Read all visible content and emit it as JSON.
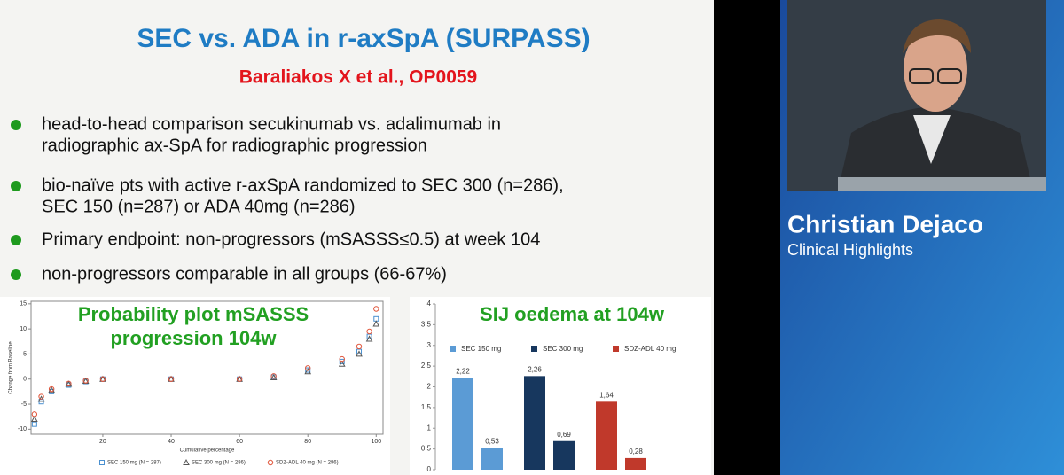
{
  "slide": {
    "title": "SEC vs. ADA in r-axSpA (SURPASS)",
    "subtitle": "Baraliakos X et al., OP0059",
    "bullets": [
      [
        "head-to-head comparison secukinumab vs. adalimumab in",
        "radiographic ax-SpA for radiographic progression"
      ],
      [
        "bio-naïve pts with active r-axSpA randomized to SEC 300 (n=286),",
        "SEC 150 (n=287) or ADA 40mg (n=286)"
      ],
      [
        "Primary endpoint: non-progressors (mSASSS≤0.5) at week 104"
      ],
      [
        "non-progressors comparable in all groups (66-67%)"
      ]
    ]
  },
  "chart_data": [
    {
      "type": "scatter",
      "title": [
        "Probability plot mSASSS",
        "progression 104w"
      ],
      "x_label": "Cumulative percentage",
      "y_label": "Change from Baseline",
      "x": [
        0,
        2,
        5,
        10,
        15,
        20,
        40,
        60,
        70,
        80,
        90,
        95,
        98,
        100
      ],
      "series": [
        {
          "name": "SEC   150 mg (N = 287)",
          "color": "#4a90d0",
          "marker": "square",
          "values": [
            -9,
            -4.5,
            -2.5,
            -1.2,
            -0.5,
            0,
            0,
            0,
            0.4,
            1.8,
            3.5,
            5.5,
            8.5,
            12
          ]
        },
        {
          "name": "SEC   300 mg (N = 286)",
          "color": "#555555",
          "marker": "triangle",
          "values": [
            -8,
            -4,
            -2.2,
            -1,
            -0.4,
            0,
            0,
            0,
            0.3,
            1.5,
            3,
            5,
            8,
            11
          ]
        },
        {
          "name": "SDZ-ADL 40 mg (N = 286)",
          "color": "#e0553a",
          "marker": "circle",
          "values": [
            -7,
            -3.5,
            -2,
            -0.9,
            -0.3,
            0,
            0,
            0,
            0.6,
            2.2,
            4,
            6.5,
            9.5,
            14
          ]
        }
      ],
      "xlim": [
        -1,
        102
      ],
      "ylim": [
        -11,
        15.5
      ],
      "xticks": [
        20,
        40,
        60,
        80,
        100
      ],
      "yticks": [
        -10,
        -5,
        0,
        5,
        10,
        15
      ]
    },
    {
      "type": "bar",
      "title": "SIJ oedema at 104w",
      "categories": [
        null,
        null
      ],
      "series": [
        {
          "name": "SEC 150 mg",
          "color": "#5b9bd5",
          "values": [
            2.22,
            0.53
          ],
          "value_labels": [
            "2,22",
            "0,53"
          ]
        },
        {
          "name": "SEC 300 mg",
          "color": "#17375e",
          "values": [
            2.26,
            0.69
          ],
          "value_labels": [
            "2,26",
            "0,69"
          ]
        },
        {
          "name": "SDZ-ADL 40 mg",
          "color": "#c0392b",
          "values": [
            1.64,
            0.28
          ],
          "value_labels": [
            "1,64",
            "0,28"
          ]
        }
      ],
      "ylim": [
        0,
        4
      ],
      "yticks": [
        0,
        {
          "value": 0.5,
          "label": "0,5"
        },
        1,
        {
          "value": 1.5,
          "label": "1,5"
        },
        2,
        {
          "value": 2.5,
          "label": "2,5"
        },
        3,
        {
          "value": 3.5,
          "label": "3,5"
        },
        4
      ]
    }
  ],
  "speaker": {
    "name": "Christian Dejaco",
    "role": "Clinical Highlights"
  }
}
